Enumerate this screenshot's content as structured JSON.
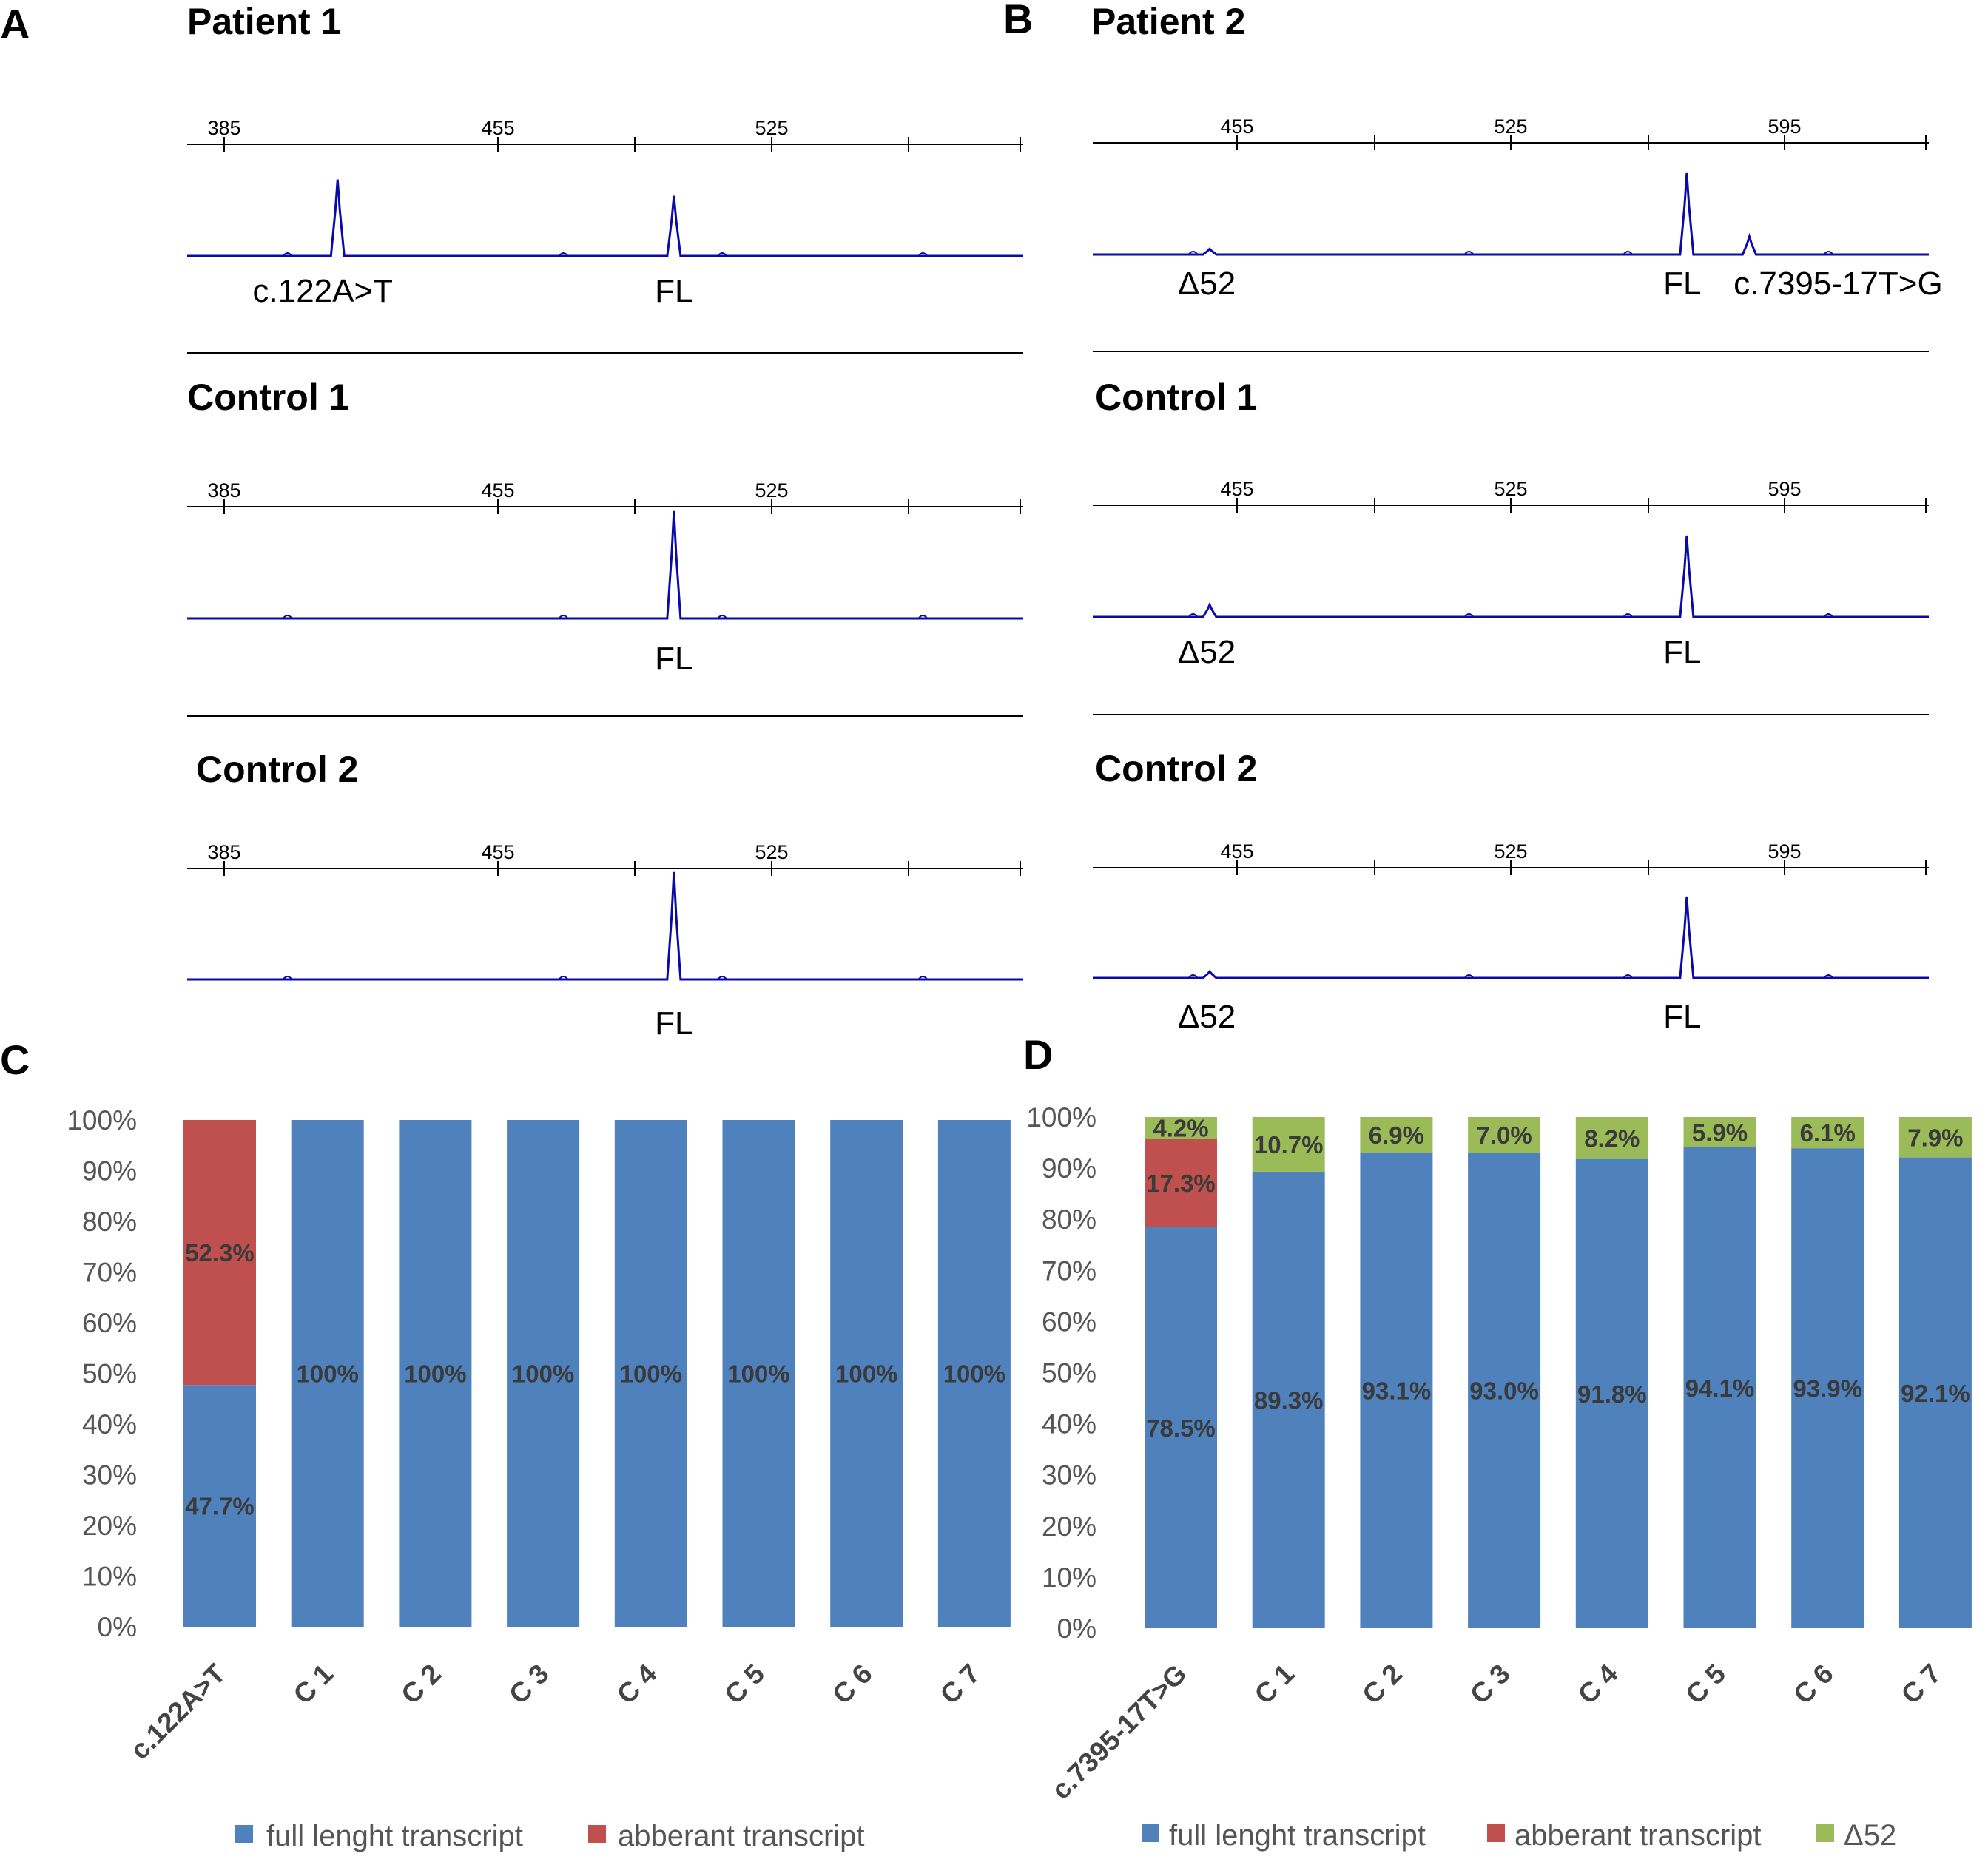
{
  "panels": {
    "A": {
      "letter": "A"
    },
    "B": {
      "letter": "B"
    },
    "C": {
      "letter": "C"
    },
    "D": {
      "letter": "D"
    }
  },
  "electropherograms": [
    {
      "panel": "A",
      "axis_ticks": [
        "385",
        "455",
        "525"
      ],
      "traces": [
        {
          "title": "Patient 1",
          "peaks": [
            {
              "size": 414,
              "height": 0.94,
              "label": "c.122A>T"
            },
            {
              "size": 500,
              "height": 0.74,
              "label": "FL"
            }
          ]
        },
        {
          "title": "Control 1",
          "peaks": [
            {
              "size": 500,
              "height": 1.32,
              "label": "FL"
            }
          ]
        },
        {
          "title": "Control 2",
          "peaks": [
            {
              "size": 500,
              "height": 1.32,
              "label": "FL"
            }
          ]
        }
      ]
    },
    {
      "panel": "B",
      "axis_ticks": [
        "455",
        "525",
        "595"
      ],
      "traces": [
        {
          "title": "Patient 2",
          "peaks": [
            {
              "size": 448,
              "height": 0.07,
              "label": "Δ52"
            },
            {
              "size": 570,
              "height": 1.0,
              "label": "FL"
            },
            {
              "size": 586,
              "height": 0.22,
              "label": "c.7395-17T>G"
            }
          ]
        },
        {
          "title": "Control 1",
          "peaks": [
            {
              "size": 448,
              "height": 0.15,
              "label": "Δ52"
            },
            {
              "size": 570,
              "height": 1.0,
              "label": "FL"
            }
          ]
        },
        {
          "title": "Control 2",
          "peaks": [
            {
              "size": 448,
              "height": 0.08,
              "label": "Δ52"
            },
            {
              "size": 570,
              "height": 1.0,
              "label": "FL"
            }
          ]
        }
      ]
    }
  ],
  "chart_data": [
    {
      "panel": "C",
      "type": "bar",
      "stacked": true,
      "categories": [
        "c.122A>T",
        "C 1",
        "C 2",
        "C 3",
        "C 4",
        "C 5",
        "C 6",
        "C 7"
      ],
      "series": [
        {
          "name": "full lenght transcript",
          "color": "#4f81bd",
          "values": [
            47.7,
            100,
            100,
            100,
            100,
            100,
            100,
            100
          ],
          "labels": [
            "47.7%",
            "100%",
            "100%",
            "100%",
            "100%",
            "100%",
            "100%",
            "100%"
          ]
        },
        {
          "name": "abberant transcript",
          "color": "#c0504d",
          "values": [
            52.3,
            0,
            0,
            0,
            0,
            0,
            0,
            0
          ],
          "labels": [
            "52.3%",
            "",
            "",
            "",
            "",
            "",
            "",
            ""
          ]
        }
      ],
      "yticks": [
        "0%",
        "10%",
        "20%",
        "30%",
        "40%",
        "50%",
        "60%",
        "70%",
        "80%",
        "90%",
        "100%"
      ],
      "ylim": [
        0,
        100
      ],
      "legend_position": "bottom"
    },
    {
      "panel": "D",
      "type": "bar",
      "stacked": true,
      "categories": [
        "c.7395-17T>G",
        "C 1",
        "C 2",
        "C 3",
        "C 4",
        "C 5",
        "C 6",
        "C 7"
      ],
      "series": [
        {
          "name": "full lenght transcript",
          "color": "#4f81bd",
          "values": [
            78.5,
            89.3,
            93.1,
            93.0,
            91.8,
            94.1,
            93.9,
            92.1
          ],
          "labels": [
            "78.5%",
            "89.3%",
            "93.1%",
            "93.0%",
            "91.8%",
            "94.1%",
            "93.9%",
            "92.1%"
          ]
        },
        {
          "name": "abberant transcript",
          "color": "#c0504d",
          "values": [
            17.3,
            0,
            0,
            0,
            0,
            0,
            0,
            0
          ],
          "labels": [
            "17.3%",
            "",
            "",
            "",
            "",
            "",
            "",
            ""
          ]
        },
        {
          "name": "Δ52",
          "color": "#9bbb59",
          "values": [
            4.2,
            10.7,
            6.9,
            7.0,
            8.2,
            5.9,
            6.1,
            7.9
          ],
          "labels": [
            "4.2%",
            "10.7%",
            "6.9%",
            "7.0%",
            "8.2%",
            "5.9%",
            "6.1%",
            "7.9%"
          ]
        }
      ],
      "yticks": [
        "0%",
        "10%",
        "20%",
        "30%",
        "40%",
        "50%",
        "60%",
        "70%",
        "80%",
        "90%",
        "100%"
      ],
      "ylim": [
        0,
        100
      ],
      "legend_position": "bottom"
    }
  ],
  "colors": {
    "trace": "#0a0aa8",
    "axis": "#000000",
    "gridless": true
  }
}
